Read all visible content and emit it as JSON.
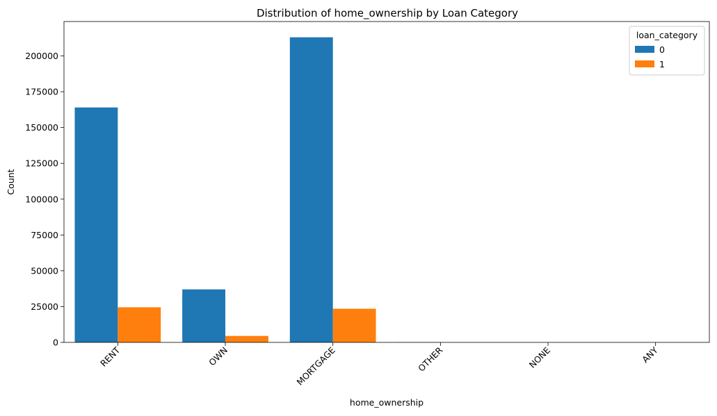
{
  "chart_data": {
    "type": "bar",
    "title": "Distribution of home_ownership by Loan Category",
    "xlabel": "home_ownership",
    "ylabel": "Count",
    "categories": [
      "RENT",
      "OWN",
      "MORTGAGE",
      "OTHER",
      "NONE",
      "ANY"
    ],
    "series": [
      {
        "name": "0",
        "values": [
          164000,
          37000,
          213000,
          150,
          40,
          2
        ]
      },
      {
        "name": "1",
        "values": [
          24500,
          4500,
          23500,
          30,
          5,
          0
        ]
      }
    ],
    "ylim": [
      0,
      224000
    ],
    "yticks": [
      0,
      25000,
      50000,
      75000,
      100000,
      125000,
      150000,
      175000,
      200000
    ],
    "colors": [
      "#1f77b4",
      "#ff7f0e"
    ],
    "legend": {
      "title": "loan_category",
      "position": "top-right"
    },
    "grid": false
  }
}
